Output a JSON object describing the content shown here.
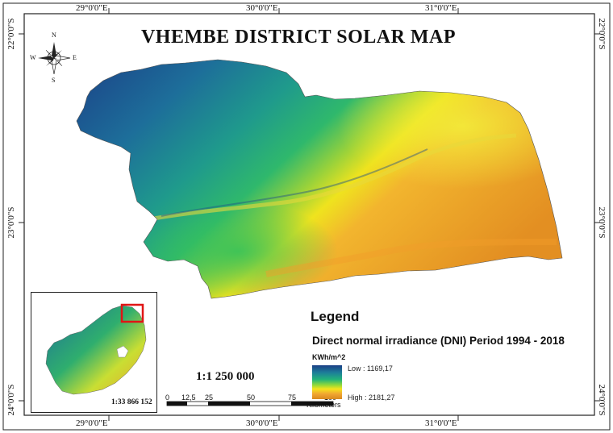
{
  "map": {
    "title": "VHEMBE DISTRICT SOLAR MAP",
    "grid_labels": {
      "top": [
        "29°0'0\"E",
        "30°0'0\"E",
        "31°0'0\"E"
      ],
      "bottom": [
        "29°0'0\"E",
        "30°0'0\"E",
        "31°0'0\"E"
      ],
      "left": [
        "22°0'0\"S",
        "23°0'0\"S",
        "24°0'0\"S"
      ],
      "right": [
        "22°0'0\"S",
        "23°0'0\"S",
        "24°0'0\"S"
      ]
    },
    "compass": {
      "north": "N",
      "south": "S",
      "east": "E",
      "west": "W"
    },
    "scale_text": "1:1 250 000",
    "scalebar": {
      "labels": [
        "0",
        "12,5",
        "25",
        "50",
        "75",
        "100"
      ],
      "unit": "Kilometers"
    },
    "inset_scale_text": "1:33 866 152",
    "legend": {
      "title": "Legend",
      "subtitle": "Direct normal irradiance (DNI) Period 1994 - 2018",
      "unit": "KWh/m^2",
      "low_label": "Low : 1169,17",
      "high_label": "High : 2181,27"
    },
    "colors": {
      "low": "#1b3f86",
      "mid_low": "#1f8f8f",
      "mid": "#22b37a",
      "mid_high": "#f5e41c",
      "high": "#e89a26",
      "inset_highlight": "#e01515"
    }
  }
}
